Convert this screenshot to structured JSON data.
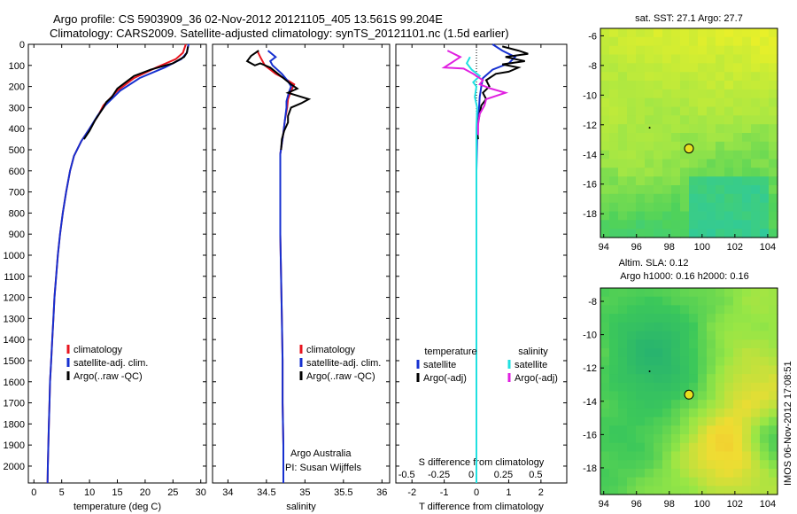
{
  "header": {
    "line1": "Argo profile: CS 5903909_36 02-Nov-2012 20121105_405 13.561S 99.204E",
    "line2": "Climatology: CARS2009. Satellite-adjusted climatology: synTS_20121101.nc (1.5d earlier)"
  },
  "footer_stamp": "IMOS 06-Nov-2012 17:08:51",
  "colors": {
    "climatology": "#e8141e",
    "satellite": "#1630d0",
    "argo": "#000000",
    "cyan": "#20e0e0",
    "magenta": "#e020e0"
  },
  "chart_data": [
    {
      "type": "line",
      "id": "temperature",
      "xlabel": "temperature (deg C)",
      "xlim": [
        -1,
        31
      ],
      "ylim": [
        0,
        2080
      ],
      "xticks": [
        0,
        5,
        10,
        15,
        20,
        25,
        30
      ],
      "yticks": [
        0,
        100,
        200,
        300,
        400,
        500,
        600,
        700,
        800,
        900,
        1000,
        1100,
        1200,
        1300,
        1400,
        1500,
        1600,
        1700,
        1800,
        1900,
        2000
      ],
      "legend": [
        "climatology",
        "satellite-adj. clim.",
        "Argo(..raw -QC)"
      ],
      "series": [
        {
          "name": "climatology",
          "color": "climatology",
          "points": [
            [
              27.3,
              0
            ],
            [
              26.8,
              40
            ],
            [
              25.5,
              70
            ],
            [
              22,
              110
            ],
            [
              18,
              160
            ],
            [
              15,
              220
            ],
            [
              12.5,
              290
            ],
            [
              11.5,
              340
            ],
            [
              10,
              400
            ],
            [
              8.5,
              460
            ],
            [
              7.2,
              530
            ],
            [
              6.5,
              600
            ],
            [
              5.8,
              700
            ],
            [
              5.2,
              800
            ],
            [
              4.7,
              900
            ],
            [
              4.3,
              1000
            ],
            [
              4.0,
              1100
            ],
            [
              3.7,
              1200
            ],
            [
              3.5,
              1300
            ],
            [
              3.3,
              1400
            ],
            [
              3.1,
              1500
            ],
            [
              2.9,
              1600
            ],
            [
              2.8,
              1700
            ],
            [
              2.7,
              1800
            ],
            [
              2.6,
              1900
            ],
            [
              2.5,
              2000
            ],
            [
              2.45,
              2080
            ]
          ]
        },
        {
          "name": "satellite-adj. clim.",
          "color": "satellite",
          "points": [
            [
              27.8,
              0
            ],
            [
              27.5,
              40
            ],
            [
              26.5,
              70
            ],
            [
              23.5,
              110
            ],
            [
              19,
              160
            ],
            [
              15.5,
              220
            ],
            [
              12.8,
              290
            ],
            [
              11.4,
              340
            ],
            [
              10,
              400
            ],
            [
              8.5,
              460
            ],
            [
              7.2,
              530
            ],
            [
              6.5,
              600
            ],
            [
              5.8,
              700
            ],
            [
              5.2,
              800
            ],
            [
              4.7,
              900
            ],
            [
              4.3,
              1000
            ],
            [
              4.0,
              1100
            ],
            [
              3.7,
              1200
            ],
            [
              3.5,
              1300
            ],
            [
              3.3,
              1400
            ],
            [
              3.1,
              1500
            ],
            [
              2.9,
              1600
            ],
            [
              2.8,
              1700
            ],
            [
              2.7,
              1800
            ],
            [
              2.6,
              1900
            ],
            [
              2.5,
              2000
            ],
            [
              2.45,
              2080
            ]
          ]
        },
        {
          "name": "Argo(..raw -QC)",
          "color": "argo",
          "points": [
            [
              27.7,
              10
            ],
            [
              27.5,
              40
            ],
            [
              27.0,
              60
            ],
            [
              25,
              90
            ],
            [
              21,
              120
            ],
            [
              18,
              150
            ],
            [
              16.5,
              180
            ],
            [
              15,
              210
            ],
            [
              14,
              250
            ],
            [
              13,
              275
            ],
            [
              12.5,
              300
            ],
            [
              11,
              360
            ],
            [
              10,
              410
            ],
            [
              9,
              450
            ]
          ]
        }
      ],
      "annotations": []
    },
    {
      "type": "line",
      "id": "salinity",
      "xlabel": "salinity",
      "xlim": [
        33.8,
        36.1
      ],
      "ylim": [
        0,
        2080
      ],
      "xticks": [
        34,
        34.5,
        35,
        35.5,
        36
      ],
      "legend": [
        "climatology",
        "satellite-adj. clim.",
        "Argo(..raw -QC)"
      ],
      "series": [
        {
          "name": "climatology",
          "color": "climatology",
          "points": [
            [
              34.38,
              30
            ],
            [
              34.42,
              60
            ],
            [
              34.48,
              100
            ],
            [
              34.62,
              140
            ],
            [
              34.75,
              165
            ],
            [
              34.86,
              190
            ],
            [
              34.82,
              220
            ],
            [
              34.78,
              260
            ],
            [
              34.77,
              300
            ],
            [
              34.74,
              360
            ],
            [
              34.72,
              420
            ],
            [
              34.7,
              470
            ],
            [
              34.68,
              520
            ],
            [
              34.68,
              600
            ],
            [
              34.68,
              700
            ],
            [
              34.68,
              900
            ],
            [
              34.69,
              1100
            ],
            [
              34.7,
              1300
            ],
            [
              34.71,
              1500
            ],
            [
              34.71,
              1700
            ],
            [
              34.72,
              1900
            ],
            [
              34.72,
              2080
            ]
          ]
        },
        {
          "name": "satellite-adj. clim.",
          "color": "satellite",
          "points": [
            [
              34.52,
              30
            ],
            [
              34.62,
              60
            ],
            [
              34.55,
              80
            ],
            [
              34.58,
              100
            ],
            [
              34.7,
              140
            ],
            [
              34.78,
              175
            ],
            [
              34.82,
              200
            ],
            [
              34.79,
              230
            ],
            [
              34.76,
              270
            ],
            [
              34.76,
              300
            ],
            [
              34.74,
              360
            ],
            [
              34.72,
              420
            ],
            [
              34.7,
              470
            ],
            [
              34.68,
              520
            ],
            [
              34.68,
              600
            ],
            [
              34.68,
              700
            ],
            [
              34.68,
              900
            ],
            [
              34.69,
              1100
            ],
            [
              34.7,
              1300
            ],
            [
              34.71,
              1500
            ],
            [
              34.71,
              1700
            ],
            [
              34.72,
              1900
            ],
            [
              34.72,
              2080
            ]
          ]
        },
        {
          "name": "Argo(..raw -QC)",
          "color": "argo",
          "points": [
            [
              34.4,
              30
            ],
            [
              34.3,
              55
            ],
            [
              34.25,
              80
            ],
            [
              34.35,
              100
            ],
            [
              34.42,
              90
            ],
            [
              34.55,
              110
            ],
            [
              34.65,
              140
            ],
            [
              34.72,
              160
            ],
            [
              34.82,
              190
            ],
            [
              34.9,
              210
            ],
            [
              34.78,
              230
            ],
            [
              35.05,
              260
            ],
            [
              34.95,
              280
            ],
            [
              34.82,
              300
            ],
            [
              34.78,
              340
            ],
            [
              34.78,
              370
            ],
            [
              34.73,
              410
            ],
            [
              34.7,
              450
            ],
            [
              34.69,
              500
            ]
          ]
        }
      ],
      "annotations": [
        "Argo Australia",
        "PI: Susan Wijffels"
      ]
    },
    {
      "type": "line",
      "id": "difference",
      "xlabel": "T difference from climatology",
      "xlabel_top": "S difference from climatology",
      "xlim": [
        -2.5,
        2.8
      ],
      "ylim": [
        0,
        2080
      ],
      "xticks": [
        -2,
        -1,
        0,
        1,
        2
      ],
      "xticks_s": [
        -0.5,
        -0.25,
        0,
        0.25,
        0.5
      ],
      "legend_titles": [
        "temperature",
        "salinity"
      ],
      "legend": [
        "satellite",
        "Argo(-adj)",
        "satellite",
        "Argo(-adj)"
      ],
      "series": [
        {
          "name": "T satellite",
          "color": "satellite",
          "points": [
            [
              0.5,
              0
            ],
            [
              0.8,
              30
            ],
            [
              1.2,
              60
            ],
            [
              1.0,
              90
            ],
            [
              0.5,
              120
            ],
            [
              0.2,
              160
            ],
            [
              0.15,
              200
            ],
            [
              0.1,
              250
            ],
            [
              0.08,
              300
            ],
            [
              0.05,
              360
            ],
            [
              0.02,
              450
            ],
            [
              0,
              600
            ],
            [
              0,
              800
            ],
            [
              0,
              1200
            ],
            [
              0,
              1600
            ],
            [
              0,
              2000
            ],
            [
              0,
              2080
            ]
          ]
        },
        {
          "name": "T Argo(-adj)",
          "color": "argo",
          "points": [
            [
              0.8,
              10
            ],
            [
              1.3,
              30
            ],
            [
              1.6,
              45
            ],
            [
              0.9,
              60
            ],
            [
              1.5,
              80
            ],
            [
              0.8,
              95
            ],
            [
              1.3,
              110
            ],
            [
              1.0,
              130
            ],
            [
              0.6,
              140
            ],
            [
              0.3,
              170
            ],
            [
              0.4,
              200
            ],
            [
              0.2,
              230
            ],
            [
              0.3,
              260
            ],
            [
              0.15,
              290
            ],
            [
              0.1,
              330
            ],
            [
              0.05,
              370
            ],
            [
              0.02,
              410
            ],
            [
              0.05,
              450
            ]
          ]
        },
        {
          "name": "S satellite",
          "color": "cyan",
          "points": [
            [
              -0.2,
              60
            ],
            [
              -0.3,
              90
            ],
            [
              -0.15,
              120
            ],
            [
              0.1,
              150
            ],
            [
              -0.1,
              180
            ],
            [
              0,
              200
            ],
            [
              -0.05,
              250
            ],
            [
              0.02,
              300
            ],
            [
              0,
              400
            ],
            [
              0,
              600
            ],
            [
              0,
              1000
            ],
            [
              0,
              1500
            ],
            [
              0,
              2080
            ]
          ]
        },
        {
          "name": "S Argo(-adj)",
          "color": "magenta",
          "points": [
            [
              -0.9,
              30
            ],
            [
              -0.5,
              60
            ],
            [
              -1.0,
              110
            ],
            [
              -0.4,
              115
            ],
            [
              -0.1,
              140
            ],
            [
              0.2,
              170
            ],
            [
              0.1,
              190
            ],
            [
              0.45,
              210
            ],
            [
              0.9,
              230
            ],
            [
              0.3,
              260
            ],
            [
              0.25,
              290
            ],
            [
              0.1,
              330
            ],
            [
              0.05,
              380
            ],
            [
              0.05,
              430
            ]
          ]
        }
      ],
      "annotations": []
    }
  ],
  "maps": [
    {
      "id": "sst",
      "title": "sat. SST: 27.1  Argo: 27.7",
      "xticks": [
        94,
        96,
        98,
        100,
        102,
        104
      ],
      "yticks": [
        -6,
        -8,
        -10,
        -12,
        -14,
        -16,
        -18
      ],
      "marker": [
        99.2,
        -13.6
      ]
    },
    {
      "id": "sla",
      "title_line1": "Altim. SLA: 0.12",
      "title_line2": "Argo h1000: 0.16 h2000: 0.16",
      "xticks": [
        94,
        96,
        98,
        100,
        102,
        104
      ],
      "yticks": [
        -8,
        -10,
        -12,
        -14,
        -16,
        -18
      ],
      "marker": [
        99.2,
        -13.6
      ]
    }
  ]
}
